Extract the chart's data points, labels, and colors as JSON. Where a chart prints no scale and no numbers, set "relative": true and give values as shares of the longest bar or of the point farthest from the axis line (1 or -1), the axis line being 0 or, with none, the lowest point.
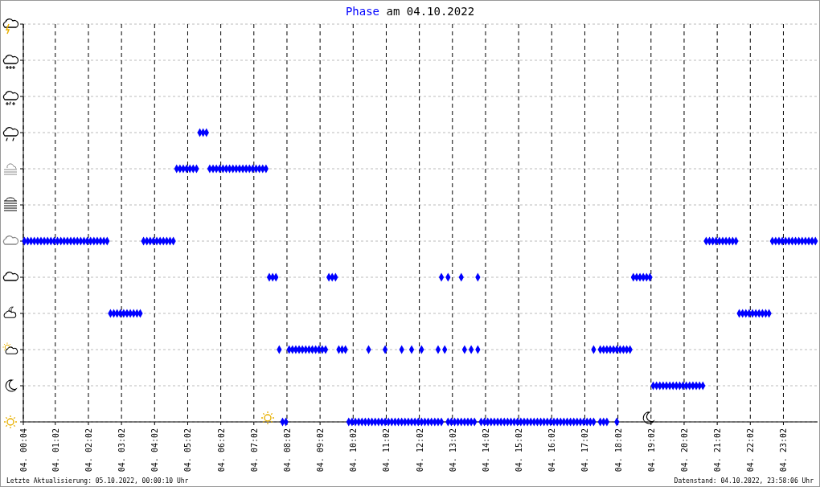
{
  "chart_data": {
    "type": "scatter",
    "title": "Phase am 04.10.2022",
    "annotations": [
      "Letzte Aktualisierung: 05.10.2022, 00:00:10 Uhr",
      "Datenstand: 04.10.2022, 23:58:06 Uhr"
    ],
    "xlim": [
      "2022-10-04T00:04",
      "2022-10-05T00:04"
    ],
    "xticks": [
      {
        "value": "2022-10-04T00:04",
        "label": "04. 00:04"
      },
      {
        "value": "2022-10-04T01:02",
        "label": "04. 01:02"
      },
      {
        "value": "2022-10-04T02:02",
        "label": "04. 02:02"
      },
      {
        "value": "2022-10-04T03:02",
        "label": "04. 03:02"
      },
      {
        "value": "2022-10-04T04:02",
        "label": "04. 04:02"
      },
      {
        "value": "2022-10-04T05:02",
        "label": "04. 05:02"
      },
      {
        "value": "2022-10-04T06:02",
        "label": "04. 06:02"
      },
      {
        "value": "2022-10-04T07:02",
        "label": "04. 07:02"
      },
      {
        "value": "2022-10-04T08:02",
        "label": "04. 08:02"
      },
      {
        "value": "2022-10-04T09:02",
        "label": "04. 09:02"
      },
      {
        "value": "2022-10-04T10:02",
        "label": "04. 10:02"
      },
      {
        "value": "2022-10-04T11:02",
        "label": "04. 11:02"
      },
      {
        "value": "2022-10-04T12:02",
        "label": "04. 12:02"
      },
      {
        "value": "2022-10-04T13:02",
        "label": "04. 13:02"
      },
      {
        "value": "2022-10-04T14:02",
        "label": "04. 14:02"
      },
      {
        "value": "2022-10-04T15:02",
        "label": "04. 15:02"
      },
      {
        "value": "2022-10-04T16:02",
        "label": "04. 16:02"
      },
      {
        "value": "2022-10-04T17:02",
        "label": "04. 17:02"
      },
      {
        "value": "2022-10-04T18:02",
        "label": "04. 18:02"
      },
      {
        "value": "2022-10-04T19:02",
        "label": "04. 19:02"
      },
      {
        "value": "2022-10-04T20:02",
        "label": "04. 20:02"
      },
      {
        "value": "2022-10-04T21:02",
        "label": "04. 21:02"
      },
      {
        "value": "2022-10-04T22:02",
        "label": "04. 22:02"
      },
      {
        "value": "2022-10-04T23:02",
        "label": "04. 23:02"
      }
    ],
    "relative": true,
    "grid": true,
    "marker": "diamond",
    "color": "#0000ff",
    "x": [
      "2022-10-04T00:06",
      "2022-10-04T00:12",
      "2022-10-04T00:18",
      "2022-10-04T00:24",
      "2022-10-04T00:30",
      "2022-10-04T00:36",
      "2022-10-04T00:42",
      "2022-10-04T00:48",
      "2022-10-04T00:54",
      "2022-10-04T01:00",
      "2022-10-04T01:06",
      "2022-10-04T01:12",
      "2022-10-04T01:18",
      "2022-10-04T01:24",
      "2022-10-04T01:30",
      "2022-10-04T01:36",
      "2022-10-04T01:42",
      "2022-10-04T01:48",
      "2022-10-04T01:54",
      "2022-10-04T02:00",
      "2022-10-04T02:06",
      "2022-10-04T02:12",
      "2022-10-04T02:18",
      "2022-10-04T02:24",
      "2022-10-04T02:30",
      "2022-10-04T02:36",
      "2022-10-04T02:42",
      "2022-10-04T02:48",
      "2022-10-04T02:54",
      "2022-10-04T03:00",
      "2022-10-04T03:06",
      "2022-10-04T03:12",
      "2022-10-04T03:18",
      "2022-10-04T03:24",
      "2022-10-04T03:30",
      "2022-10-04T03:36",
      "2022-10-04T03:42",
      "2022-10-04T03:48",
      "2022-10-04T03:54",
      "2022-10-04T04:00",
      "2022-10-04T04:06",
      "2022-10-04T04:12",
      "2022-10-04T04:18",
      "2022-10-04T04:24",
      "2022-10-04T04:30",
      "2022-10-04T04:36",
      "2022-10-04T04:42",
      "2022-10-04T04:48",
      "2022-10-04T04:54",
      "2022-10-04T05:00",
      "2022-10-04T05:06",
      "2022-10-04T05:12",
      "2022-10-04T05:18",
      "2022-10-04T05:24",
      "2022-10-04T05:30",
      "2022-10-04T05:36",
      "2022-10-04T05:42",
      "2022-10-04T05:48",
      "2022-10-04T05:54",
      "2022-10-04T06:00",
      "2022-10-04T06:06",
      "2022-10-04T06:12",
      "2022-10-04T06:18",
      "2022-10-04T06:24",
      "2022-10-04T06:30",
      "2022-10-04T06:36",
      "2022-10-04T06:42",
      "2022-10-04T06:48",
      "2022-10-04T06:54",
      "2022-10-04T07:00",
      "2022-10-04T07:06",
      "2022-10-04T07:12",
      "2022-10-04T07:18",
      "2022-10-04T07:24",
      "2022-10-04T07:30",
      "2022-10-04T07:36",
      "2022-10-04T07:42",
      "2022-10-04T07:48",
      "2022-10-04T07:54",
      "2022-10-04T08:00",
      "2022-10-04T08:06",
      "2022-10-04T08:12",
      "2022-10-04T08:18",
      "2022-10-04T08:24",
      "2022-10-04T08:30",
      "2022-10-04T08:36",
      "2022-10-04T08:42",
      "2022-10-04T08:48",
      "2022-10-04T08:54",
      "2022-10-04T09:00",
      "2022-10-04T09:06",
      "2022-10-04T09:12",
      "2022-10-04T09:18",
      "2022-10-04T09:24",
      "2022-10-04T09:30",
      "2022-10-04T09:36",
      "2022-10-04T09:42",
      "2022-10-04T09:48",
      "2022-10-04T09:54",
      "2022-10-04T10:00",
      "2022-10-04T10:06",
      "2022-10-04T10:12",
      "2022-10-04T10:18",
      "2022-10-04T10:24",
      "2022-10-04T10:30",
      "2022-10-04T10:36",
      "2022-10-04T10:42",
      "2022-10-04T10:48",
      "2022-10-04T10:54",
      "2022-10-04T11:00",
      "2022-10-04T11:06",
      "2022-10-04T11:12",
      "2022-10-04T11:18",
      "2022-10-04T11:24",
      "2022-10-04T11:30",
      "2022-10-04T11:36",
      "2022-10-04T11:42",
      "2022-10-04T11:48",
      "2022-10-04T11:54",
      "2022-10-04T12:00",
      "2022-10-04T12:06",
      "2022-10-04T12:12",
      "2022-10-04T12:18",
      "2022-10-04T12:24",
      "2022-10-04T12:30",
      "2022-10-04T12:36",
      "2022-10-04T12:42",
      "2022-10-04T12:54",
      "2022-10-04T13:00",
      "2022-10-04T13:06",
      "2022-10-04T13:12",
      "2022-10-04T13:18",
      "2022-10-04T13:24",
      "2022-10-04T13:30",
      "2022-10-04T13:36",
      "2022-10-04T13:42",
      "2022-10-04T13:54",
      "2022-10-04T14:00",
      "2022-10-04T14:06",
      "2022-10-04T14:12",
      "2022-10-04T14:18",
      "2022-10-04T14:24",
      "2022-10-04T14:30",
      "2022-10-04T14:36",
      "2022-10-04T14:42",
      "2022-10-04T14:48",
      "2022-10-04T14:54",
      "2022-10-04T15:00",
      "2022-10-04T15:06",
      "2022-10-04T15:12",
      "2022-10-04T15:18",
      "2022-10-04T15:24",
      "2022-10-04T15:30",
      "2022-10-04T15:36",
      "2022-10-04T15:42",
      "2022-10-04T15:48",
      "2022-10-04T15:54",
      "2022-10-04T16:00",
      "2022-10-04T16:06",
      "2022-10-04T16:12",
      "2022-10-04T16:18",
      "2022-10-04T16:24",
      "2022-10-04T16:30",
      "2022-10-04T16:36",
      "2022-10-04T16:42",
      "2022-10-04T16:48",
      "2022-10-04T16:54",
      "2022-10-04T17:00",
      "2022-10-04T17:06",
      "2022-10-04T17:12",
      "2022-10-04T17:18",
      "2022-10-04T17:30",
      "2022-10-04T17:36",
      "2022-10-04T17:42",
      "2022-10-04T18:00",
      "2022-10-04T10:30",
      "2022-10-04T11:00",
      "2022-10-04T11:30",
      "2022-10-04T11:48",
      "2022-10-04T12:06",
      "2022-10-04T12:36",
      "2022-10-04T12:48",
      "2022-10-04T13:24",
      "2022-10-04T13:36",
      "2022-10-04T13:48",
      "2022-10-04T12:42",
      "2022-10-04T12:54",
      "2022-10-04T13:18",
      "2022-10-04T13:48",
      "2022-10-04T17:18",
      "2022-10-04T17:30",
      "2022-10-04T17:36",
      "2022-10-04T17:42",
      "2022-10-04T17:48",
      "2022-10-04T17:54",
      "2022-10-04T18:00",
      "2022-10-04T18:06",
      "2022-10-04T18:12",
      "2022-10-04T18:18",
      "2022-10-04T18:24",
      "2022-10-04T18:30",
      "2022-10-04T18:36",
      "2022-10-04T18:42",
      "2022-10-04T18:48",
      "2022-10-04T18:54",
      "2022-10-04T19:00",
      "2022-10-04T19:06",
      "2022-10-04T19:12",
      "2022-10-04T19:18",
      "2022-10-04T19:24",
      "2022-10-04T19:30",
      "2022-10-04T19:36",
      "2022-10-04T19:42",
      "2022-10-04T19:48",
      "2022-10-04T19:54",
      "2022-10-04T20:00",
      "2022-10-04T20:06",
      "2022-10-04T20:12",
      "2022-10-04T20:18",
      "2022-10-04T20:24",
      "2022-10-04T20:30",
      "2022-10-04T20:36",
      "2022-10-04T20:42",
      "2022-10-04T20:48",
      "2022-10-04T20:54",
      "2022-10-04T21:00",
      "2022-10-04T21:06",
      "2022-10-04T21:12",
      "2022-10-04T21:18",
      "2022-10-04T21:24",
      "2022-10-04T21:30",
      "2022-10-04T21:36",
      "2022-10-04T21:42",
      "2022-10-04T21:48",
      "2022-10-04T21:54",
      "2022-10-04T22:00",
      "2022-10-04T22:06",
      "2022-10-04T22:12",
      "2022-10-04T22:18",
      "2022-10-04T22:24",
      "2022-10-04T22:30",
      "2022-10-04T22:36",
      "2022-10-04T22:42",
      "2022-10-04T22:48",
      "2022-10-04T22:54",
      "2022-10-04T23:00",
      "2022-10-04T23:06",
      "2022-10-04T23:12",
      "2022-10-04T23:18",
      "2022-10-04T23:24",
      "2022-10-04T23:30",
      "2022-10-04T23:36",
      "2022-10-04T23:42",
      "2022-10-04T23:48",
      "2022-10-04T23:54",
      "2022-10-05T00:00"
    ],
    "values": [
      0.625,
      0.625,
      0.625,
      0.625,
      0.625,
      0.625,
      0.625,
      0.625,
      0.625,
      0.625,
      0.625,
      0.625,
      0.625,
      0.625,
      0.625,
      0.625,
      0.625,
      0.625,
      0.625,
      0.625,
      0.625,
      0.625,
      0.625,
      0.625,
      0.625,
      0.625,
      0.375,
      0.375,
      0.375,
      0.375,
      0.375,
      0.375,
      0.375,
      0.375,
      0.375,
      0.375,
      0.625,
      0.625,
      0.625,
      0.625,
      0.625,
      0.625,
      0.625,
      0.625,
      0.625,
      0.625,
      0.875,
      0.875,
      0.875,
      0.875,
      0.875,
      0.875,
      0.875,
      1,
      1,
      1,
      0.875,
      0.875,
      0.875,
      0.875,
      0.875,
      0.875,
      0.875,
      0.875,
      0.875,
      0.875,
      0.875,
      0.875,
      0.875,
      0.875,
      0.875,
      0.875,
      0.875,
      0.875,
      0.5,
      0.5,
      0.5,
      0.25,
      0,
      0,
      0.25,
      0.25,
      0.25,
      0.25,
      0.25,
      0.25,
      0.25,
      0.25,
      0.25,
      0.25,
      0.25,
      0.25,
      0.5,
      0.5,
      0.5,
      0.25,
      0.25,
      0.25,
      0,
      0,
      0,
      0,
      0,
      0,
      0,
      0,
      0,
      0,
      0,
      0,
      0,
      0,
      0,
      0,
      0,
      0,
      0,
      0,
      0,
      0,
      0,
      0,
      0,
      0,
      0,
      0,
      0,
      0,
      0,
      0,
      0,
      0,
      0,
      0,
      0,
      0,
      0,
      0,
      0,
      0,
      0,
      0,
      0,
      0,
      0,
      0,
      0,
      0,
      0,
      0,
      0,
      0,
      0,
      0,
      0,
      0,
      0,
      0,
      0,
      0,
      0,
      0,
      0,
      0,
      0,
      0,
      0,
      0,
      0,
      0,
      0,
      0,
      0,
      0,
      0,
      0.25,
      0.25,
      0.25,
      0.25,
      0.25,
      0.25,
      0.25,
      0.25,
      0.25,
      0.25,
      0.5,
      0.5,
      0.5,
      0.5,
      0.25,
      0.25,
      0.25,
      0.25,
      0.25,
      0.25,
      0.25,
      0.25,
      0.25,
      0.25,
      0.25,
      0.5,
      0.5,
      0.5,
      0.5,
      0.5,
      0.5,
      0.125,
      0.125,
      0.125,
      0.125,
      0.125,
      0.125,
      0.125,
      0.125,
      0.125,
      0.125,
      0.125,
      0.125,
      0.125,
      0.125,
      0.125,
      0.125,
      0.625,
      0.625,
      0.625,
      0.625,
      0.625,
      0.625,
      0.625,
      0.625,
      0.625,
      0.625,
      0.375,
      0.375,
      0.375,
      0.375,
      0.375,
      0.375,
      0.375,
      0.375,
      0.375,
      0.375,
      0.625,
      0.625,
      0.625,
      0.625,
      0.625,
      0.625,
      0.625,
      0.625,
      0.625,
      0.625,
      0.625,
      0.625,
      0.625,
      0.625
    ]
  }
}
